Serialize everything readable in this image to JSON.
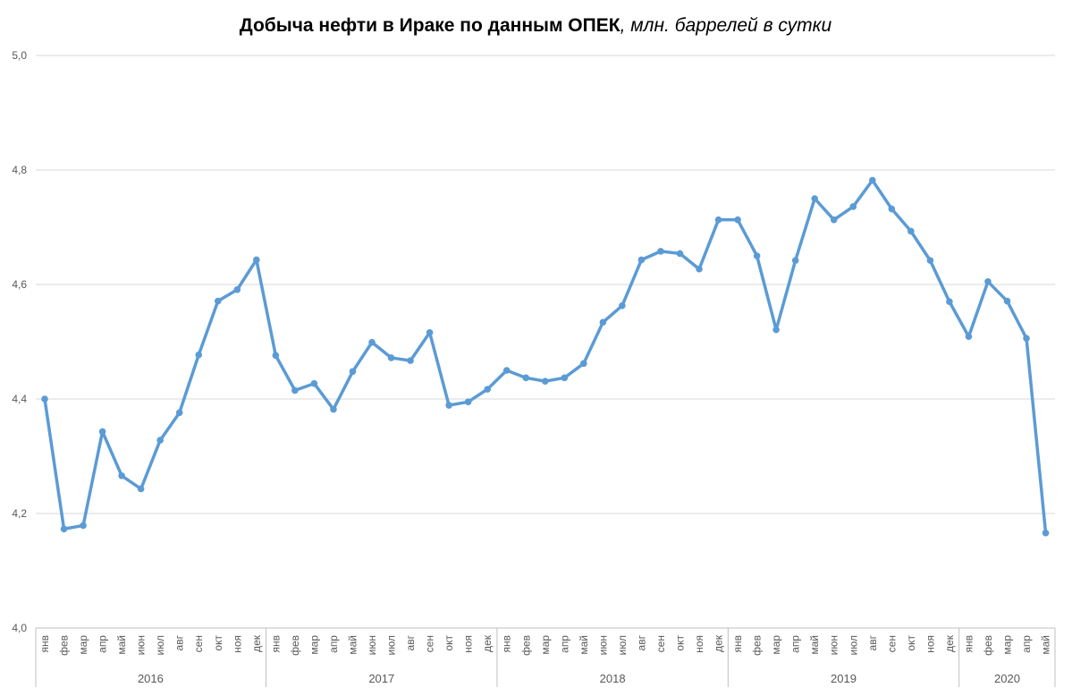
{
  "chart_data": {
    "type": "line",
    "title": "Добыча нефти в Ираке по данным ОПЕК",
    "subtitle": ", млн. баррелей в сутки",
    "xlabel": "",
    "ylabel": "",
    "ylim": [
      4.0,
      5.0
    ],
    "y_ticks": [
      "4,0",
      "4,2",
      "4,4",
      "4,6",
      "4,8",
      "5,0"
    ],
    "y_tick_values": [
      4.0,
      4.2,
      4.4,
      4.6,
      4.8,
      5.0
    ],
    "grid": true,
    "legend": "none",
    "line_color": "#5B9BD5",
    "grid_color": "#D9D9D9",
    "axis_color": "#BFBFBF",
    "years": [
      {
        "label": "2016",
        "months": 12
      },
      {
        "label": "2017",
        "months": 12
      },
      {
        "label": "2018",
        "months": 12
      },
      {
        "label": "2019",
        "months": 12
      },
      {
        "label": "2020",
        "months": 5
      }
    ],
    "categories": [
      "янв",
      "фев",
      "мар",
      "апр",
      "май",
      "июн",
      "июл",
      "авг",
      "сен",
      "окт",
      "ноя",
      "дек",
      "янв",
      "фев",
      "мар",
      "апр",
      "май",
      "июн",
      "июл",
      "авг",
      "сен",
      "окт",
      "ноя",
      "дек",
      "янв",
      "фев",
      "мар",
      "апр",
      "май",
      "июн",
      "июл",
      "авг",
      "сен",
      "окт",
      "ноя",
      "дек",
      "янв",
      "фев",
      "мар",
      "апр",
      "май",
      "июн",
      "июл",
      "авг",
      "сен",
      "окт",
      "ноя",
      "дек",
      "янв",
      "фев",
      "мар",
      "апр",
      "май"
    ],
    "values": [
      4.4,
      4.173,
      4.179,
      4.343,
      4.266,
      4.243,
      4.328,
      4.376,
      4.477,
      4.571,
      4.591,
      4.643,
      4.476,
      4.415,
      4.427,
      4.382,
      4.448,
      4.499,
      4.472,
      4.467,
      4.516,
      4.389,
      4.395,
      4.417,
      4.45,
      4.437,
      4.431,
      4.437,
      4.462,
      4.534,
      4.563,
      4.643,
      4.658,
      4.654,
      4.627,
      4.713,
      4.713,
      4.65,
      4.521,
      4.642,
      4.75,
      4.713,
      4.736,
      4.782,
      4.732,
      4.693,
      4.642,
      4.57,
      4.509,
      4.605,
      4.571,
      4.506,
      4.166
    ]
  }
}
